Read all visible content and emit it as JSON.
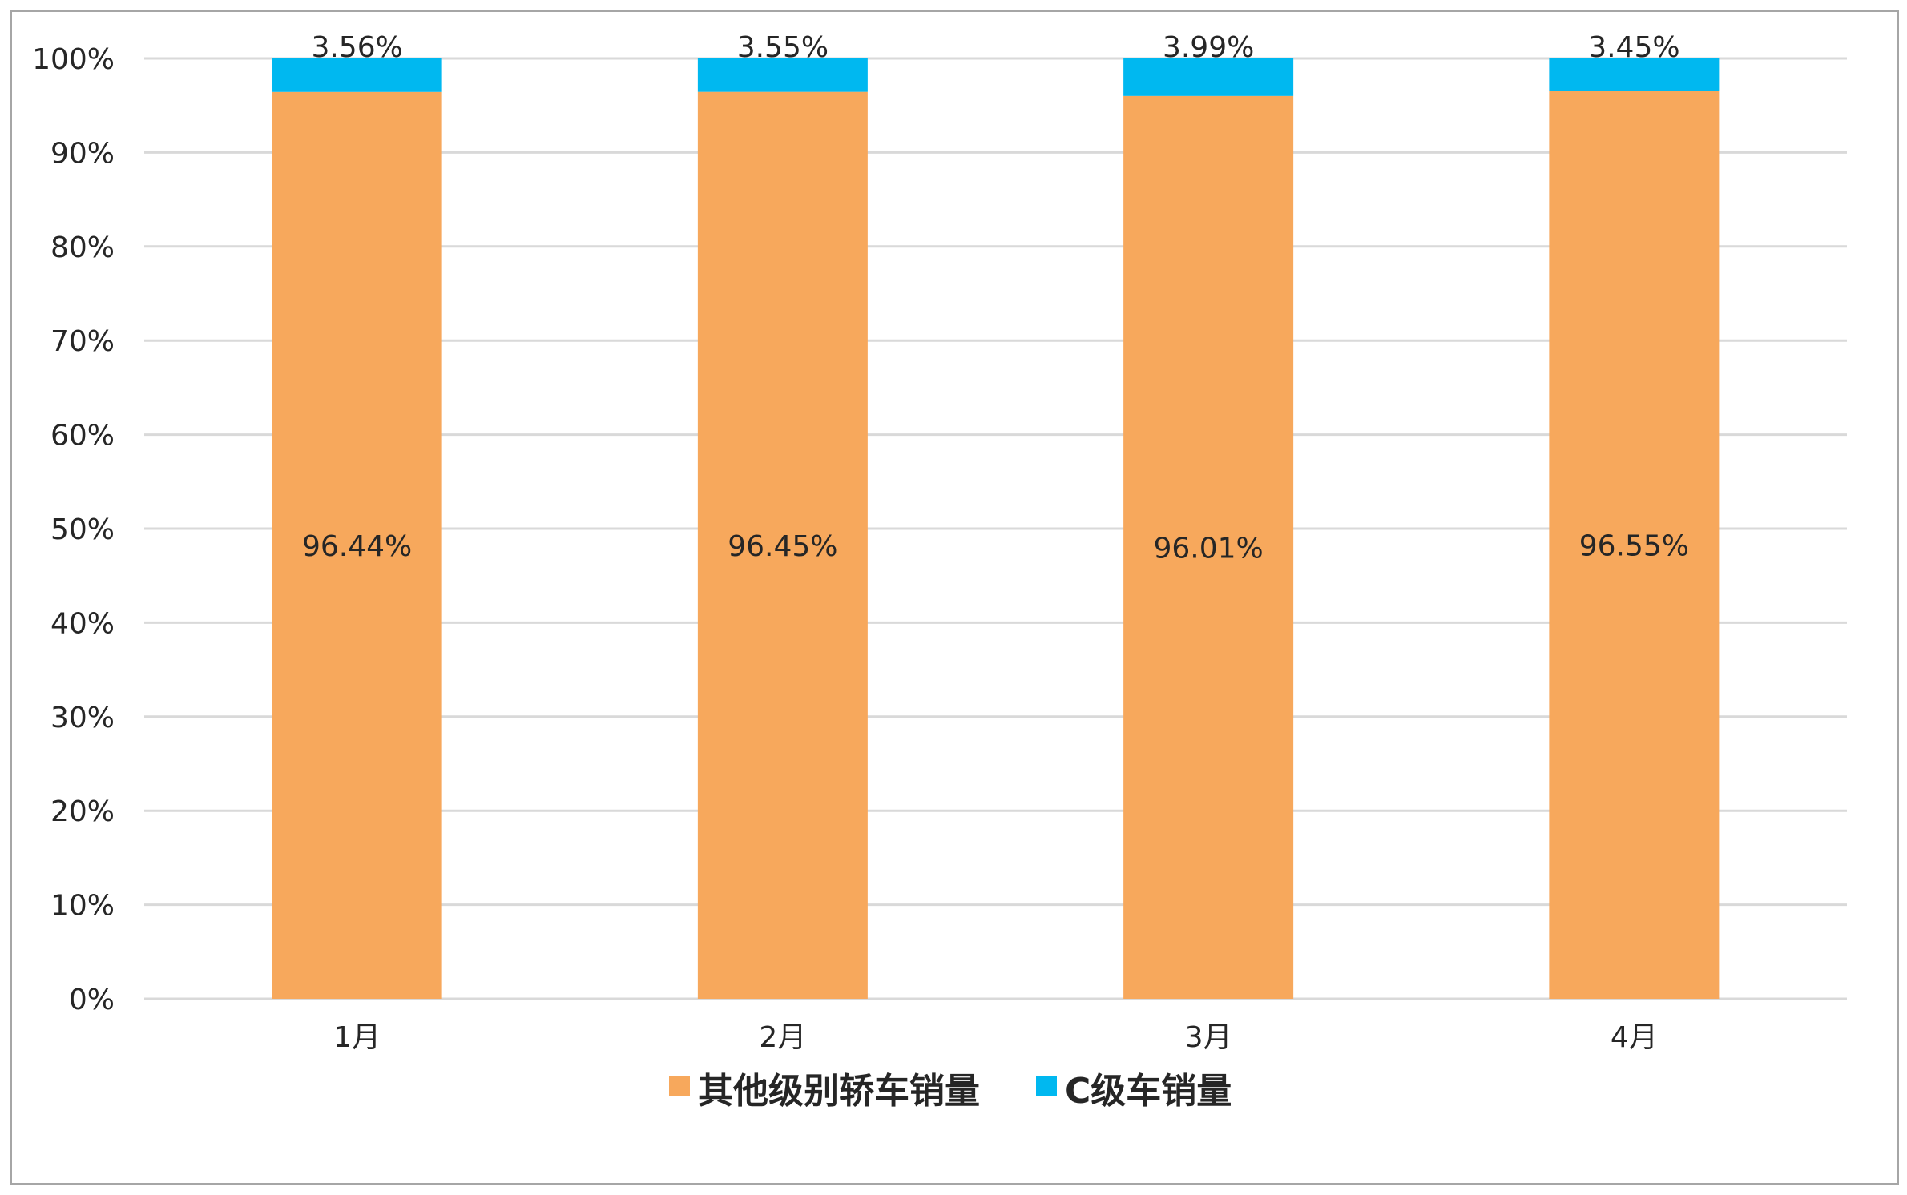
{
  "chart_data": {
    "type": "bar",
    "stacked": true,
    "categories": [
      "1月",
      "2月",
      "3月",
      "4月"
    ],
    "series": [
      {
        "name": "其他级别轿车销量",
        "color": "#F7A85C",
        "values": [
          96.44,
          96.45,
          96.01,
          96.55
        ],
        "labels": [
          "96.44%",
          "96.45%",
          "96.01%",
          "96.55%"
        ]
      },
      {
        "name": "C级车销量",
        "color": "#00B8F0",
        "values": [
          3.56,
          3.55,
          3.99,
          3.45
        ],
        "labels": [
          "3.56%",
          "3.55%",
          "3.99%",
          "3.45%"
        ]
      }
    ],
    "y_ticks": [
      "0%",
      "10%",
      "20%",
      "30%",
      "40%",
      "50%",
      "60%",
      "70%",
      "80%",
      "90%",
      "100%"
    ],
    "ylim": [
      0,
      100
    ],
    "grid": true,
    "legend_position": "bottom-center",
    "gridline_color": "#D9D9D9"
  }
}
